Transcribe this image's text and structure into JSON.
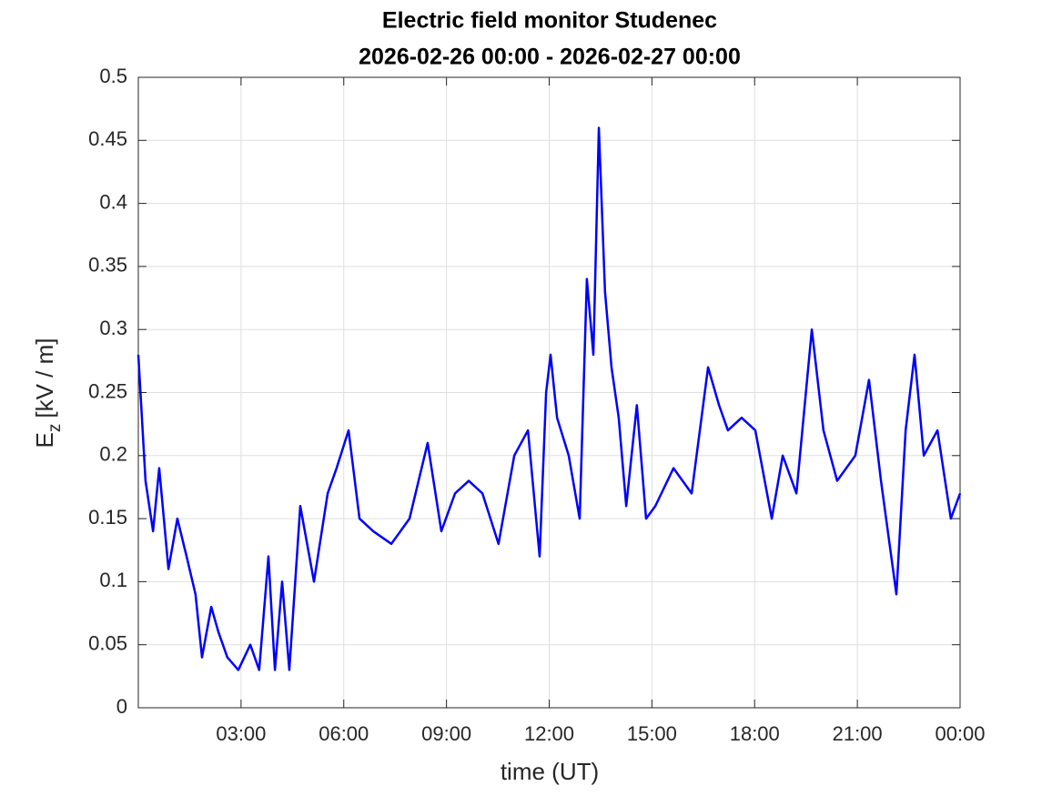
{
  "chart_data": {
    "type": "line",
    "title": [
      "Electric field monitor Studenec",
      "2026-02-26 00:00 - 2026-02-27 00:00"
    ],
    "xlabel": "time (UT)",
    "ylabel": {
      "symbol": "E",
      "subscript": "z",
      "unit": "[kV / m]"
    },
    "x": [
      0,
      0.21,
      0.43,
      0.61,
      0.88,
      1.14,
      1.41,
      1.67,
      1.86,
      2.13,
      2.34,
      2.6,
      2.92,
      3.27,
      3.53,
      3.8,
      3.99,
      4.2,
      4.41,
      4.73,
      5.13,
      5.53,
      5.79,
      6.14,
      6.46,
      6.86,
      7.39,
      7.92,
      8.45,
      8.85,
      9.25,
      9.65,
      10.05,
      10.52,
      10.98,
      11.38,
      11.72,
      11.91,
      12.04,
      12.23,
      12.57,
      12.89,
      13.1,
      13.29,
      13.45,
      13.63,
      13.82,
      14.03,
      14.25,
      14.56,
      14.83,
      15.1,
      15.63,
      16.16,
      16.64,
      16.96,
      17.22,
      17.62,
      18.02,
      18.5,
      18.82,
      19.22,
      19.67,
      20.01,
      20.41,
      20.94,
      21.34,
      21.69,
      22.14,
      22.41,
      22.67,
      22.94,
      23.34,
      23.73,
      24
    ],
    "values": [
      0.28,
      0.18,
      0.14,
      0.19,
      0.11,
      0.15,
      0.12,
      0.09,
      0.04,
      0.08,
      0.06,
      0.04,
      0.03,
      0.05,
      0.03,
      0.12,
      0.03,
      0.1,
      0.03,
      0.16,
      0.1,
      0.17,
      0.19,
      0.22,
      0.15,
      0.14,
      0.13,
      0.15,
      0.21,
      0.14,
      0.17,
      0.18,
      0.17,
      0.13,
      0.2,
      0.22,
      0.12,
      0.25,
      0.28,
      0.23,
      0.2,
      0.15,
      0.34,
      0.28,
      0.46,
      0.33,
      0.27,
      0.23,
      0.16,
      0.24,
      0.15,
      0.16,
      0.19,
      0.17,
      0.27,
      0.24,
      0.22,
      0.23,
      0.22,
      0.15,
      0.2,
      0.17,
      0.3,
      0.22,
      0.18,
      0.2,
      0.26,
      0.18,
      0.09,
      0.22,
      0.28,
      0.2,
      0.22,
      0.15,
      0.17
    ],
    "color": "#0000ff",
    "xlim": [
      0,
      24
    ],
    "xticks": [
      {
        "value": 3,
        "label": "03:00"
      },
      {
        "value": 6,
        "label": "06:00"
      },
      {
        "value": 9,
        "label": "09:00"
      },
      {
        "value": 12,
        "label": "12:00"
      },
      {
        "value": 15,
        "label": "15:00"
      },
      {
        "value": 18,
        "label": "18:00"
      },
      {
        "value": 21,
        "label": "21:00"
      },
      {
        "value": 24,
        "label": "00:00"
      }
    ],
    "ylim": [
      0,
      0.5
    ],
    "yticks": [
      0,
      0.05,
      0.1,
      0.15,
      0.2,
      0.25,
      0.3,
      0.35,
      0.4,
      0.45,
      0.5
    ],
    "grid": true
  }
}
